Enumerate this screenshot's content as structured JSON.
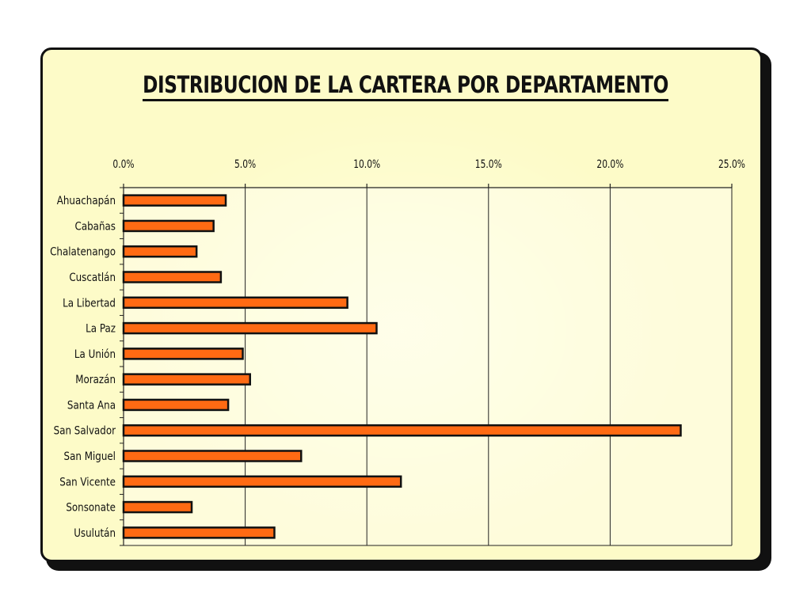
{
  "colors": {
    "bar_fill": "#ff6a13",
    "bar_stroke": "#111111",
    "panel_background": "#fdfbc8",
    "plot_background": "#ffffff"
  },
  "chart_data": {
    "type": "bar",
    "orientation": "horizontal",
    "title": "DISTRIBUCION DE LA CARTERA POR DEPARTAMENTO",
    "xlabel": "",
    "ylabel": "",
    "xlim": [
      0,
      25
    ],
    "x_ticks": [
      "0.0%",
      "5.0%",
      "10.0%",
      "15.0%",
      "20.0%",
      "25.0%"
    ],
    "x_axis_position": "top",
    "grid": "vertical",
    "legend": "none",
    "categories": [
      "Ahuachapán",
      "Cabañas",
      "Chalatenango",
      "Cuscatlán",
      "La Libertad",
      "La Paz",
      "La Unión",
      "Morazán",
      "Santa Ana",
      "San Salvador",
      "San Miguel",
      "San Vicente",
      "Sonsonate",
      "Usulután"
    ],
    "values": [
      4.2,
      3.7,
      3.0,
      4.0,
      9.2,
      10.4,
      4.9,
      5.2,
      4.3,
      22.9,
      7.3,
      11.4,
      2.8,
      6.2
    ],
    "unit": "%"
  }
}
